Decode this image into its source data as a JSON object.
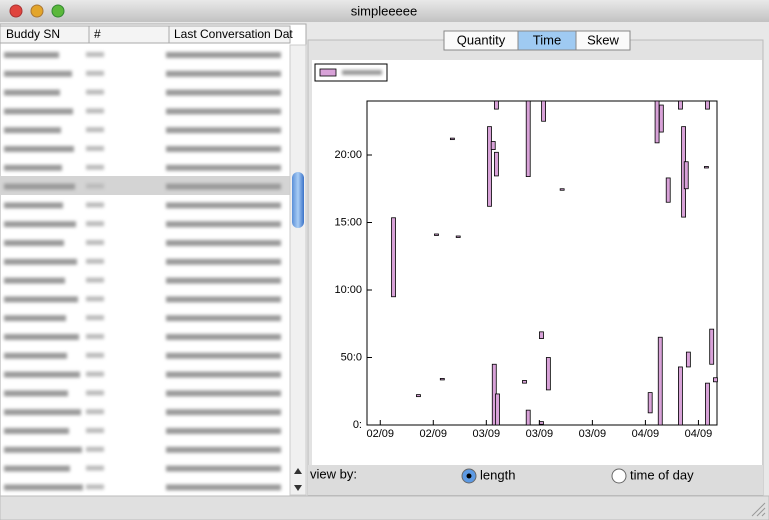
{
  "window": {
    "title": "simpleeeee"
  },
  "table": {
    "columns": [
      "Buddy SN",
      "#",
      "Last Conversation Dat"
    ]
  },
  "tabs": {
    "items": [
      "Quantity",
      "Time",
      "Skew"
    ],
    "selected": "Time"
  },
  "view_by": {
    "label": "view by:",
    "options": [
      "length",
      "time of day"
    ],
    "selected": "length"
  },
  "chart_data": {
    "type": "range-bar",
    "color": "#d8a2d8",
    "x": [
      0.25,
      0.72,
      1.06,
      1.17,
      1.36,
      1.47,
      2.06,
      2.13,
      2.19,
      2.15,
      2.21,
      2.19,
      2.79,
      2.79,
      2.72,
      3.04,
      3.04,
      3.08,
      3.17,
      3.43,
      5.09,
      5.22,
      5.28,
      5.3,
      5.43,
      5.66,
      5.66,
      5.72,
      5.77,
      5.81,
      6.15,
      6.17,
      6.17,
      6.25,
      6.32
    ],
    "low": [
      9.5,
      2.1,
      14.05,
      3.35,
      21.15,
      13.9,
      16.2,
      20.4,
      18.45,
      0,
      0,
      23.4,
      18.4,
      0,
      3.1,
      0.05,
      6.4,
      22.5,
      2.6,
      17.4,
      0.9,
      20.9,
      0,
      21.7,
      16.5,
      0,
      23.4,
      15.4,
      17.5,
      4.3,
      19.05,
      23.4,
      0,
      4.5,
      3.2
    ],
    "high": [
      15.35,
      2.25,
      14.15,
      3.45,
      21.25,
      14.0,
      22.1,
      21.0,
      20.2,
      4.5,
      2.3,
      24,
      24,
      1.1,
      3.3,
      0.25,
      6.9,
      24,
      5.0,
      17.5,
      2.4,
      24,
      6.5,
      23.7,
      18.3,
      4.3,
      24,
      22.1,
      19.5,
      5.4,
      19.15,
      24,
      3.1,
      7.1,
      3.5
    ],
    "xlim": [
      -0.25,
      6.35
    ],
    "xticks": [
      {
        "value": 0,
        "label": "02/09"
      },
      {
        "value": 1,
        "label": "02/09"
      },
      {
        "value": 2,
        "label": "03/09"
      },
      {
        "value": 3,
        "label": "03/09"
      },
      {
        "value": 4,
        "label": "03/09"
      },
      {
        "value": 5,
        "label": "04/09"
      },
      {
        "value": 6,
        "label": "04/09"
      }
    ],
    "ylim": [
      0,
      24
    ],
    "yticks": [
      {
        "value": 0,
        "label": "0:"
      },
      {
        "value": 5,
        "label": "50:0"
      },
      {
        "value": 10,
        "label": "10:00"
      },
      {
        "value": 15,
        "label": "15:00"
      },
      {
        "value": 20,
        "label": "20:00"
      }
    ]
  }
}
